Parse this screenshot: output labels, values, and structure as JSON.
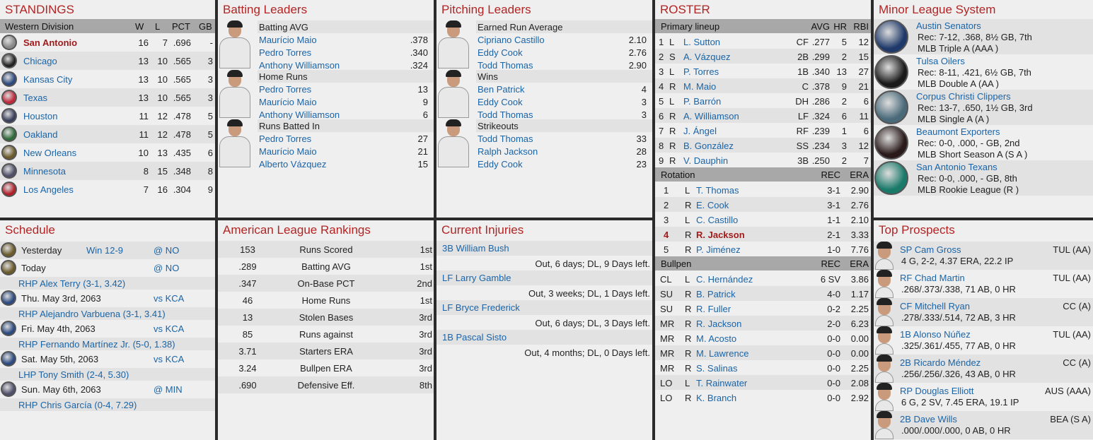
{
  "colors": {
    "title": "#b32424",
    "link": "#1a64a8",
    "header": "#a8a8a8",
    "highlight": "#a31a1a"
  },
  "standings": {
    "title": "STANDINGS",
    "division": "Western Division",
    "cols": [
      "W",
      "L",
      "PCT",
      "GB"
    ],
    "teams": [
      {
        "name": "San Antonio",
        "w": "16",
        "l": "7",
        "pct": ".696",
        "gb": "-",
        "logo": "#888888",
        "highlight": true
      },
      {
        "name": "Chicago",
        "w": "13",
        "l": "10",
        "pct": ".565",
        "gb": "3",
        "logo": "#222222"
      },
      {
        "name": "Kansas City",
        "w": "13",
        "l": "10",
        "pct": ".565",
        "gb": "3",
        "logo": "#2c4a80"
      },
      {
        "name": "Texas",
        "w": "13",
        "l": "10",
        "pct": ".565",
        "gb": "3",
        "logo": "#c0283a"
      },
      {
        "name": "Houston",
        "w": "11",
        "l": "12",
        "pct": ".478",
        "gb": "5",
        "logo": "#3a3f5c"
      },
      {
        "name": "Oakland",
        "w": "11",
        "l": "12",
        "pct": ".478",
        "gb": "5",
        "logo": "#2f6a3a"
      },
      {
        "name": "New Orleans",
        "w": "10",
        "l": "13",
        "pct": ".435",
        "gb": "6",
        "logo": "#6b5a2a"
      },
      {
        "name": "Minnesota",
        "w": "8",
        "l": "15",
        "pct": ".348",
        "gb": "8",
        "logo": "#50506a"
      },
      {
        "name": "Los Angeles",
        "w": "7",
        "l": "16",
        "pct": ".304",
        "gb": "9",
        "logo": "#b01f2a"
      }
    ]
  },
  "batting": {
    "title": "Batting Leaders",
    "cats": [
      {
        "label": "Batting AVG",
        "leaders": [
          {
            "name": "Maurício Maio",
            "val": ".378"
          },
          {
            "name": "Pedro Torres",
            "val": ".340"
          },
          {
            "name": "Anthony Williamson",
            "val": ".324"
          }
        ]
      },
      {
        "label": "Home Runs",
        "leaders": [
          {
            "name": "Pedro Torres",
            "val": "13"
          },
          {
            "name": "Maurício Maio",
            "val": "9"
          },
          {
            "name": "Anthony Williamson",
            "val": "6"
          }
        ]
      },
      {
        "label": "Runs Batted In",
        "leaders": [
          {
            "name": "Pedro Torres",
            "val": "27"
          },
          {
            "name": "Maurício Maio",
            "val": "21"
          },
          {
            "name": "Alberto Vázquez",
            "val": "15"
          }
        ]
      }
    ]
  },
  "pitching": {
    "title": "Pitching Leaders",
    "cats": [
      {
        "label": "Earned Run Average",
        "leaders": [
          {
            "name": "Cipriano Castillo",
            "val": "2.10"
          },
          {
            "name": "Eddy Cook",
            "val": "2.76"
          },
          {
            "name": "Todd Thomas",
            "val": "2.90"
          }
        ]
      },
      {
        "label": "Wins",
        "leaders": [
          {
            "name": "Ben Patrick",
            "val": "4"
          },
          {
            "name": "Eddy Cook",
            "val": "3"
          },
          {
            "name": "Todd Thomas",
            "val": "3"
          }
        ]
      },
      {
        "label": "Strikeouts",
        "leaders": [
          {
            "name": "Todd Thomas",
            "val": "33"
          },
          {
            "name": "Ralph Jackson",
            "val": "28"
          },
          {
            "name": "Eddy Cook",
            "val": "23"
          }
        ]
      }
    ]
  },
  "roster": {
    "title": "ROSTER",
    "lineup_label": "Primary lineup",
    "lineup_cols": [
      "AVG",
      "HR",
      "RBI"
    ],
    "lineup": [
      {
        "n": "1",
        "h": "L",
        "name": "L. Sutton",
        "pos": "CF",
        "avg": ".277",
        "hr": "5",
        "rbi": "12"
      },
      {
        "n": "2",
        "h": "S",
        "name": "A. Vázquez",
        "pos": "2B",
        "avg": ".299",
        "hr": "2",
        "rbi": "15"
      },
      {
        "n": "3",
        "h": "L",
        "name": "P. Torres",
        "pos": "1B",
        "avg": ".340",
        "hr": "13",
        "rbi": "27"
      },
      {
        "n": "4",
        "h": "R",
        "name": "M. Maio",
        "pos": "C",
        "avg": ".378",
        "hr": "9",
        "rbi": "21"
      },
      {
        "n": "5",
        "h": "L",
        "name": "P. Barrón",
        "pos": "DH",
        "avg": ".286",
        "hr": "2",
        "rbi": "6"
      },
      {
        "n": "6",
        "h": "R",
        "name": "A. Williamson",
        "pos": "LF",
        "avg": ".324",
        "hr": "6",
        "rbi": "11"
      },
      {
        "n": "7",
        "h": "R",
        "name": "J. Ángel",
        "pos": "RF",
        "avg": ".239",
        "hr": "1",
        "rbi": "6"
      },
      {
        "n": "8",
        "h": "R",
        "name": "B. González",
        "pos": "SS",
        "avg": ".234",
        "hr": "3",
        "rbi": "12"
      },
      {
        "n": "9",
        "h": "R",
        "name": "V. Dauphin",
        "pos": "3B",
        "avg": ".250",
        "hr": "2",
        "rbi": "7"
      }
    ],
    "rotation_label": "Rotation",
    "pitch_cols": [
      "REC",
      "ERA"
    ],
    "rotation": [
      {
        "n": "1",
        "h": "L",
        "name": "T. Thomas",
        "rec": "3-1",
        "era": "2.90"
      },
      {
        "n": "2",
        "h": "R",
        "name": "E. Cook",
        "rec": "3-1",
        "era": "2.76"
      },
      {
        "n": "3",
        "h": "L",
        "name": "C. Castillo",
        "rec": "1-1",
        "era": "2.10"
      },
      {
        "n": "4",
        "h": "R",
        "name": "R. Jackson",
        "rec": "2-1",
        "era": "3.33",
        "highlight": true
      },
      {
        "n": "5",
        "h": "R",
        "name": "P. Jiménez",
        "rec": "1-0",
        "era": "7.76"
      }
    ],
    "bullpen_label": "Bullpen",
    "bullpen": [
      {
        "n": "CL",
        "h": "L",
        "name": "C. Hernández",
        "rec": "6 SV",
        "era": "3.86"
      },
      {
        "n": "SU",
        "h": "R",
        "name": "B. Patrick",
        "rec": "4-0",
        "era": "1.17"
      },
      {
        "n": "SU",
        "h": "R",
        "name": "R. Fuller",
        "rec": "0-2",
        "era": "2.25"
      },
      {
        "n": "MR",
        "h": "R",
        "name": "R. Jackson",
        "rec": "2-0",
        "era": "6.23"
      },
      {
        "n": "MR",
        "h": "R",
        "name": "M. Acosto",
        "rec": "0-0",
        "era": "0.00"
      },
      {
        "n": "MR",
        "h": "R",
        "name": "M. Lawrence",
        "rec": "0-0",
        "era": "0.00"
      },
      {
        "n": "MR",
        "h": "R",
        "name": "S. Salinas",
        "rec": "0-0",
        "era": "2.25"
      },
      {
        "n": "LO",
        "h": "L",
        "name": "T. Rainwater",
        "rec": "0-0",
        "era": "2.08"
      },
      {
        "n": "LO",
        "h": "R",
        "name": "K. Branch",
        "rec": "0-0",
        "era": "2.92"
      }
    ]
  },
  "minors": {
    "title": "Minor League System",
    "teams": [
      {
        "name": "Austin Senators",
        "rec": "Rec: 7-12, .368, 8½ GB, 7th",
        "level": "MLB Triple A (AAA )",
        "logo": "#1f3a6a"
      },
      {
        "name": "Tulsa Oilers",
        "rec": "Rec: 8-11, .421, 6½ GB, 7th",
        "level": "MLB Double A (AA )",
        "logo": "#1a1a1a"
      },
      {
        "name": "Corpus Christi Clippers",
        "rec": "Rec: 13-7, .650, 1½ GB, 3rd",
        "level": "MLB Single A (A )",
        "logo": "#4a6a7a"
      },
      {
        "name": "Beaumont Exporters",
        "rec": "Rec: 0-0, .000, - GB, 2nd",
        "level": "MLB Short Season A (S A )",
        "logo": "#2a1a1a"
      },
      {
        "name": "San Antonio Texans",
        "rec": "Rec: 0-0, .000, - GB, 8th",
        "level": "MLB Rookie League (R )",
        "logo": "#1a7a6a"
      }
    ]
  },
  "schedule": {
    "title": "Schedule",
    "games": [
      {
        "date": "Yesterday",
        "result": "Win 12-9",
        "opp": "@ NO",
        "logo": "#6b5a2a"
      },
      {
        "date": "Today",
        "result": "",
        "opp": "@ NO",
        "pitcher": "RHP Alex Terry (3-1, 3.42)",
        "logo": "#6b5a2a"
      },
      {
        "date": "Thu. May 3rd, 2063",
        "result": "",
        "opp": "vs KCA",
        "pitcher": "RHP Alejandro Varbuena (3-1, 3.41)",
        "logo": "#2c4a80"
      },
      {
        "date": "Fri. May 4th, 2063",
        "result": "",
        "opp": "vs KCA",
        "pitcher": "RHP Fernando Martínez Jr. (5-0, 1.38)",
        "logo": "#2c4a80"
      },
      {
        "date": "Sat. May 5th, 2063",
        "result": "",
        "opp": "vs KCA",
        "pitcher": "LHP Tony Smith (2-4, 5.30)",
        "logo": "#2c4a80"
      },
      {
        "date": "Sun. May 6th, 2063",
        "result": "",
        "opp": "@ MIN",
        "pitcher": "RHP Chris García (0-4, 7.29)",
        "logo": "#50506a"
      }
    ]
  },
  "rankings": {
    "title": "American League Rankings",
    "items": [
      {
        "val": "153",
        "label": "Runs Scored",
        "rank": "1st"
      },
      {
        "val": ".289",
        "label": "Batting AVG",
        "rank": "1st"
      },
      {
        "val": ".347",
        "label": "On-Base PCT",
        "rank": "2nd"
      },
      {
        "val": "46",
        "label": "Home Runs",
        "rank": "1st"
      },
      {
        "val": "13",
        "label": "Stolen Bases",
        "rank": "3rd"
      },
      {
        "val": "85",
        "label": "Runs against",
        "rank": "3rd"
      },
      {
        "val": "3.71",
        "label": "Starters ERA",
        "rank": "3rd"
      },
      {
        "val": "3.24",
        "label": "Bullpen ERA",
        "rank": "3rd"
      },
      {
        "val": ".690",
        "label": "Defensive Eff.",
        "rank": "8th"
      }
    ]
  },
  "injuries": {
    "title": "Current Injuries",
    "items": [
      {
        "name": "3B William Bush",
        "detail": "Out, 6 days; DL, 9 Days left."
      },
      {
        "name": "LF Larry Gamble",
        "detail": "Out, 3 weeks; DL, 1 Days left."
      },
      {
        "name": "LF Bryce Frederick",
        "detail": "Out, 6 days; DL, 3 Days left."
      },
      {
        "name": "1B Pascal Sisto",
        "detail": "Out, 4 months; DL, 0 Days left."
      }
    ]
  },
  "prospects": {
    "title": "Top Prospects",
    "items": [
      {
        "name": "SP Cam Gross",
        "team": "TUL (AA)",
        "stats": "4 G, 2-2, 4.37 ERA, 22.2 IP"
      },
      {
        "name": "RF Chad Martin",
        "team": "TUL (AA)",
        "stats": ".268/.373/.338, 71 AB, 0 HR"
      },
      {
        "name": "CF Mitchell Ryan",
        "team": "CC (A)",
        "stats": ".278/.333/.514, 72 AB, 3 HR"
      },
      {
        "name": "1B Alonso Núñez",
        "team": "TUL (AA)",
        "stats": ".325/.361/.455, 77 AB, 0 HR"
      },
      {
        "name": "2B Ricardo Méndez",
        "team": "CC (A)",
        "stats": ".256/.256/.326, 43 AB, 0 HR"
      },
      {
        "name": "RP Douglas Elliott",
        "team": "AUS (AAA)",
        "stats": "6 G, 2 SV, 7.45 ERA, 19.1 IP"
      },
      {
        "name": "2B Dave Wills",
        "team": "BEA (S A)",
        "stats": ".000/.000/.000, 0 AB, 0 HR"
      }
    ]
  }
}
